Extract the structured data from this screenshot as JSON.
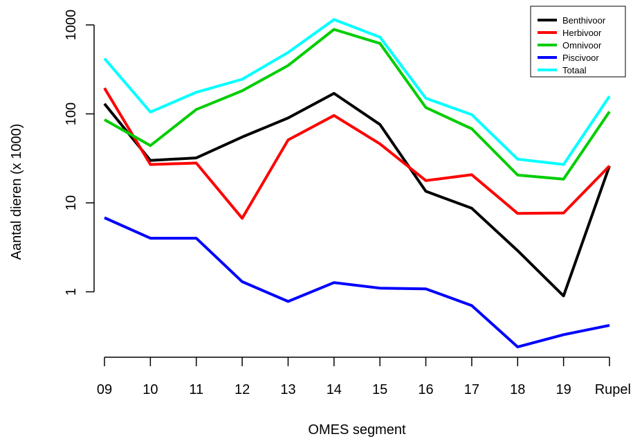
{
  "chart_data": {
    "type": "line",
    "title": "",
    "xlabel": "OMES segment",
    "ylabel": "Aantal dieren (x 1000)",
    "y_scale": "log",
    "yticks": [
      1,
      10,
      100,
      1000
    ],
    "ytick_labels": [
      "1",
      "10",
      "100",
      "1000"
    ],
    "categories": [
      "09",
      "10",
      "11",
      "12",
      "13",
      "14",
      "15",
      "16",
      "17",
      "18",
      "19",
      "Rupel"
    ],
    "legend_position": "top-right",
    "series": [
      {
        "name": "Benthivoor",
        "color": "#000000",
        "values": [
          130,
          30,
          32,
          55,
          90,
          170,
          76,
          13.5,
          8.7,
          2.9,
          0.9,
          26
        ]
      },
      {
        "name": "Herbivoor",
        "color": "#ff0000",
        "values": [
          195,
          27,
          28,
          6.7,
          51,
          96,
          46,
          17.8,
          20.7,
          7.6,
          7.7,
          26
        ]
      },
      {
        "name": "Omnivoor",
        "color": "#00cd00",
        "values": [
          86,
          44,
          112,
          182,
          350,
          890,
          620,
          118,
          68,
          20.5,
          18.5,
          106
        ]
      },
      {
        "name": "Piscivoor",
        "color": "#0000ff",
        "values": [
          6.8,
          4.0,
          4.0,
          1.3,
          0.78,
          1.27,
          1.1,
          1.08,
          0.7,
          0.24,
          0.33,
          0.42
        ]
      },
      {
        "name": "Totaal",
        "color": "#00ffff",
        "values": [
          420,
          105,
          175,
          245,
          490,
          1150,
          730,
          150,
          98,
          31,
          27,
          158
        ]
      }
    ]
  }
}
